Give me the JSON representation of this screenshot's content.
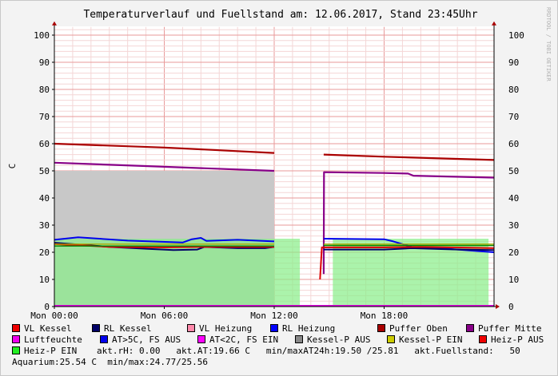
{
  "chart_data": {
    "type": "line",
    "title": "Temperaturverlauf und Fuellstand am: 12.06.2017, Stand 23:45Uhr",
    "ylabel": "C",
    "watermark": "RRDTOOL / TOBI OETIKER",
    "ylim": [
      0,
      103
    ],
    "yticks": [
      0,
      10,
      20,
      30,
      40,
      50,
      60,
      70,
      80,
      90,
      100
    ],
    "xlim_hours": [
      0,
      24
    ],
    "xticks": [
      {
        "hour": 0,
        "label": "Mon 00:00"
      },
      {
        "hour": 6,
        "label": "Mon 06:00"
      },
      {
        "hour": 12,
        "label": "Mon 12:00"
      },
      {
        "hour": 18,
        "label": "Mon 18:00"
      }
    ],
    "areas": [
      {
        "name": "Kessel-P AUS",
        "color": "#c8c8c8",
        "segments": [
          {
            "from": 0,
            "to": 12,
            "value": 50
          }
        ]
      },
      {
        "name": "Heiz-P EIN",
        "color": "#88ee88",
        "segments": [
          {
            "from": 0,
            "to": 13.4,
            "value": 25
          },
          {
            "from": 15.2,
            "to": 23.7,
            "value": 25
          }
        ]
      }
    ],
    "series": [
      {
        "name": "Puffer Oben",
        "color": "#aa0000",
        "width": 2.2,
        "segments": [
          [
            [
              0,
              60
            ],
            [
              6,
              58.6
            ],
            [
              12,
              56.6
            ]
          ],
          [
            [
              14.7,
              56
            ],
            [
              18,
              55.2
            ],
            [
              24,
              54
            ]
          ]
        ]
      },
      {
        "name": "Puffer Mitte",
        "color": "#880088",
        "width": 2.2,
        "segments": [
          [
            [
              0,
              53
            ],
            [
              6,
              51.5
            ],
            [
              12,
              50
            ]
          ],
          [
            [
              14.7,
              12
            ],
            [
              14.72,
              49.5
            ],
            [
              18,
              49.2
            ],
            [
              19.3,
              49
            ],
            [
              19.6,
              48.2
            ],
            [
              24,
              47.5
            ]
          ]
        ]
      },
      {
        "name": "AT>5C, FS AUS",
        "color": "#0000ee",
        "width": 2.0,
        "segments": [
          [
            [
              0,
              24.6
            ],
            [
              1.3,
              25.5
            ],
            [
              4,
              24.3
            ],
            [
              7,
              23.6
            ],
            [
              7.5,
              24.8
            ],
            [
              8,
              25.3
            ],
            [
              8.3,
              24.2
            ],
            [
              10,
              24.6
            ],
            [
              12,
              24
            ]
          ],
          [
            [
              14.7,
              25
            ],
            [
              18,
              24.8
            ],
            [
              18.5,
              24
            ],
            [
              19.5,
              22
            ],
            [
              21,
              21.5
            ],
            [
              24,
              20
            ]
          ]
        ]
      },
      {
        "name": "RL Kessel",
        "color": "#000066",
        "width": 2.0,
        "segments": [
          [
            [
              0,
              23.5
            ],
            [
              3,
              22
            ],
            [
              5,
              21.3
            ],
            [
              6.5,
              20.8
            ],
            [
              7.8,
              21
            ],
            [
              8.2,
              22
            ],
            [
              10,
              21.5
            ],
            [
              11.5,
              21.5
            ],
            [
              12,
              22
            ]
          ],
          [
            [
              14.7,
              21
            ],
            [
              18,
              21
            ],
            [
              19.5,
              21.5
            ],
            [
              22,
              21
            ],
            [
              24,
              20.8
            ]
          ]
        ]
      },
      {
        "name": "VL Kessel",
        "color": "#dd0000",
        "width": 2.0,
        "segments": [
          [
            [
              0,
              23
            ],
            [
              3,
              22
            ],
            [
              6,
              21.8
            ],
            [
              8,
              22
            ],
            [
              12,
              22
            ]
          ],
          [
            [
              14.5,
              10
            ],
            [
              14.6,
              21.8
            ],
            [
              18,
              21.8
            ],
            [
              20,
              22
            ],
            [
              24,
              21.5
            ]
          ]
        ]
      },
      {
        "name": "Kessel-P EIN",
        "color": "#aaaa00",
        "width": 1.4,
        "segments": [
          [
            [
              0,
              23
            ],
            [
              12,
              23
            ]
          ],
          [
            [
              14.7,
              23
            ],
            [
              24,
              23
            ]
          ]
        ]
      },
      {
        "name": "Heiz-P AUS",
        "color": "#008800",
        "width": 1.4,
        "segments": [
          [
            [
              0,
              22.3
            ],
            [
              12,
              22.3
            ]
          ],
          [
            [
              14.7,
              22.5
            ],
            [
              24,
              22.5
            ]
          ]
        ]
      },
      {
        "name": "AT<2C, FS EIN",
        "color": "#dd00dd",
        "width": 2.0,
        "segments": [
          [
            [
              0,
              0.3
            ],
            [
              24,
              0.3
            ]
          ]
        ]
      }
    ],
    "legend": [
      {
        "label": "VL Kessel",
        "color": "#ee0000"
      },
      {
        "label": "RL Kessel",
        "color": "#000066"
      },
      {
        "label": "VL Heizung",
        "color": "#ff88aa"
      },
      {
        "label": "RL Heizung",
        "color": "#0000ff"
      },
      {
        "label": "Puffer Oben",
        "color": "#aa0000"
      },
      {
        "label": "Puffer Mitte",
        "color": "#880088"
      },
      {
        "label": "Luftfeuchte",
        "color": "#ee00ee"
      },
      {
        "label": "AT>5C, FS AUS",
        "color": "#0000ee"
      },
      {
        "label": "AT<2C, FS EIN",
        "color": "#ff00ff"
      },
      {
        "label": "Kessel-P AUS",
        "color": "#888888"
      },
      {
        "label": "Kessel-P EIN",
        "color": "#cccc00"
      },
      {
        "label": "Heiz-P AUS",
        "color": "#ee0000"
      },
      {
        "label": "Heiz-P EIN",
        "color": "#22ee22"
      }
    ],
    "info": {
      "line3": "akt.rH: 0.00   akt.AT:19.66 C   min/maxAT24h:19.50 /25.81   akt.Fuellstand:   50",
      "line4": "Aquarium:25.54 C  min/max:24.77/25.56"
    }
  }
}
